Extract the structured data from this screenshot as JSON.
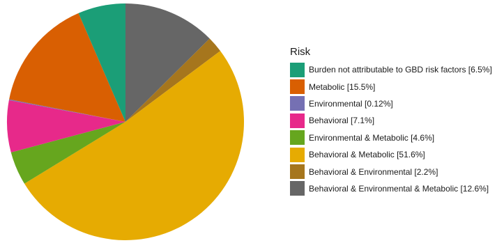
{
  "chart_data": {
    "type": "pie",
    "legend_title": "Risk",
    "legend_position": "right",
    "start_angle_deg": 0,
    "direction": "clockwise",
    "slices": [
      {
        "label": "Burden not attributable to GBD risk factors [6.5%]",
        "value": 6.5,
        "color": "#1b9e77"
      },
      {
        "label": "Metabolic [15.5%]",
        "value": 15.5,
        "color": "#d95f02"
      },
      {
        "label": "Environmental [0.12%]",
        "value": 0.12,
        "color": "#7570b3"
      },
      {
        "label": "Behavioral [7.1%]",
        "value": 7.1,
        "color": "#e7298a"
      },
      {
        "label": "Environmental & Metabolic [4.6%]",
        "value": 4.6,
        "color": "#66a61e"
      },
      {
        "label": "Behavioral & Metabolic [51.6%]",
        "value": 51.6,
        "color": "#e6ab02"
      },
      {
        "label": "Behavioral & Environmental [2.2%]",
        "value": 2.2,
        "color": "#a6761d"
      },
      {
        "label": "Behavioral & Environmental & Metabolic [12.6%]",
        "value": 12.6,
        "color": "#666666"
      }
    ]
  }
}
